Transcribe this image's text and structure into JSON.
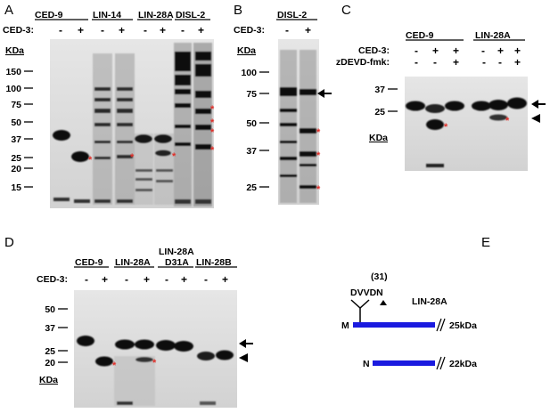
{
  "panel_letters": {
    "a": "A",
    "b": "B",
    "c": "C",
    "d": "D",
    "e": "E"
  },
  "common": {
    "ced3": "CED-3:",
    "minus": "-",
    "plus": "+",
    "kda": "KDa",
    "star": "*"
  },
  "panelA": {
    "groups": [
      "CED-9",
      "LIN-14",
      "LIN-28A",
      "DISL-2"
    ],
    "markers": [
      "150",
      "100",
      "75",
      "50",
      "37",
      "25",
      "20",
      "15"
    ]
  },
  "panelB": {
    "group": "DISL-2",
    "markers": [
      "100",
      "75",
      "50",
      "37",
      "25"
    ]
  },
  "panelC": {
    "groups": [
      "CED-9",
      "LIN-28A"
    ],
    "ced3_label": "CED-3:",
    "zdevd_label": "zDEVD-fmk:",
    "ced3_signs": [
      "-",
      "+",
      "+",
      "-",
      "+",
      "+"
    ],
    "zdevd_signs": [
      "-",
      "-",
      "+",
      "-",
      "-",
      "+"
    ],
    "markers": [
      "37",
      "25"
    ]
  },
  "panelD": {
    "groups": [
      "CED-9",
      "LIN-28A",
      "LIN-28A",
      "LIN-28B"
    ],
    "mutant_label": "D31A",
    "markers": [
      "50",
      "37",
      "25",
      "20"
    ]
  },
  "panelE": {
    "site_number": "(31)",
    "site_seq": "DVVDN",
    "protein": "LIN-28A",
    "full_start": "M",
    "full_size": "25kDa",
    "cleaved_start": "N",
    "cleaved_size": "22kDa",
    "bar_color": "#1a1adf"
  }
}
